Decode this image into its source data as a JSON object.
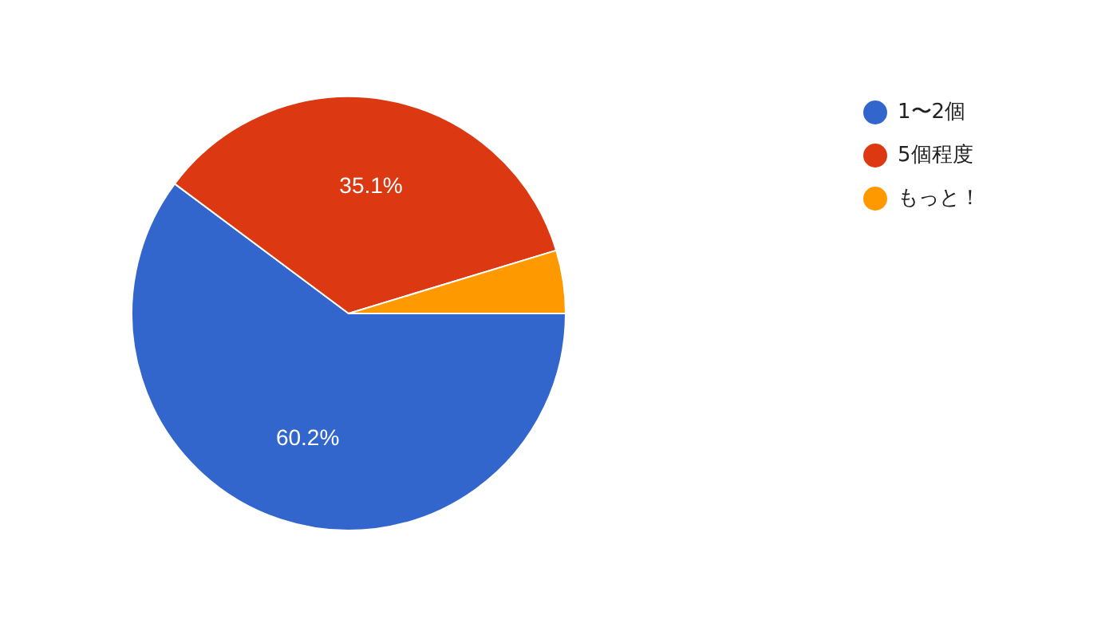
{
  "chart_data": {
    "type": "pie",
    "categories": [
      "1〜2個",
      "5個程度",
      "もっと！"
    ],
    "values": [
      60.2,
      35.1,
      4.7
    ],
    "colors": [
      "#3366cc",
      "#dc3912",
      "#ff9900"
    ],
    "value_labels": [
      "60.2%",
      "35.1%",
      null
    ],
    "legend": "top right"
  }
}
